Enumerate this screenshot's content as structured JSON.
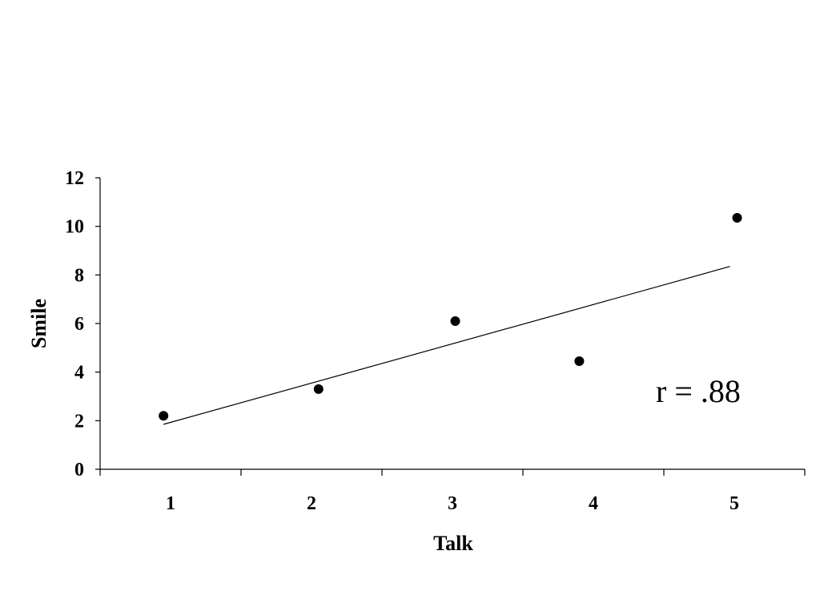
{
  "chart_data": {
    "type": "scatter",
    "title": "",
    "xlabel": "Talk",
    "ylabel": "Smile",
    "x": [
      0.95,
      2.05,
      3.02,
      3.9,
      5.02
    ],
    "y": [
      2.2,
      3.3,
      6.1,
      4.45,
      10.35
    ],
    "xlim": [
      0.5,
      5.5
    ],
    "ylim": [
      0,
      12
    ],
    "x_ticks": [
      1,
      2,
      3,
      4,
      5
    ],
    "y_ticks": [
      0,
      2,
      4,
      6,
      8,
      10,
      12
    ],
    "trendline": {
      "x": [
        0.95,
        4.97
      ],
      "y": [
        1.85,
        8.35
      ]
    },
    "annotation": "r = .88",
    "grid": false,
    "legend": "none",
    "marker_color": "#000000"
  }
}
